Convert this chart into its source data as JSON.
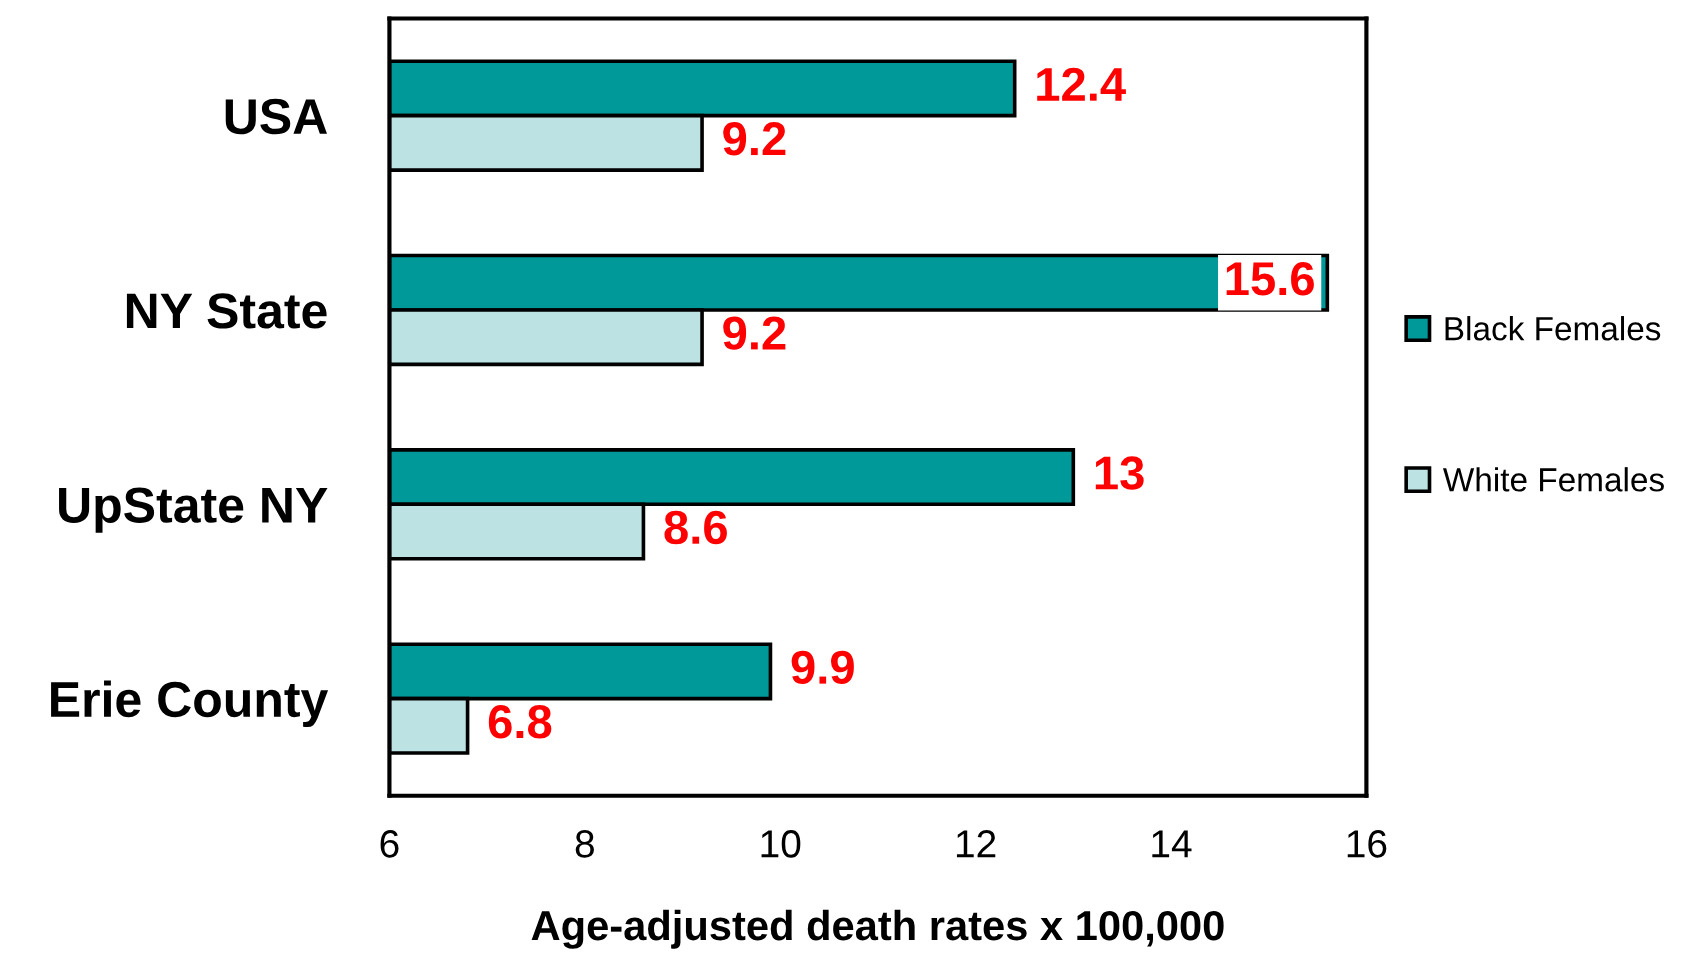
{
  "chart_data": {
    "type": "bar",
    "orientation": "horizontal",
    "xlabel": "Age-adjusted death rates x 100,000",
    "categories": [
      "USA",
      "NY State",
      "UpState NY",
      "Erie County"
    ],
    "series": [
      {
        "name": "Black Females",
        "color": "#009999",
        "values": [
          12.4,
          15.6,
          13,
          9.9
        ]
      },
      {
        "name": "White Females",
        "color": "#bde2e3",
        "values": [
          9.2,
          9.2,
          8.6,
          6.8
        ]
      }
    ],
    "xlim": [
      6,
      16
    ],
    "xticks": [
      6,
      8,
      10,
      12,
      14,
      16
    ],
    "data_labels": true,
    "grid": false,
    "legend": "right"
  }
}
